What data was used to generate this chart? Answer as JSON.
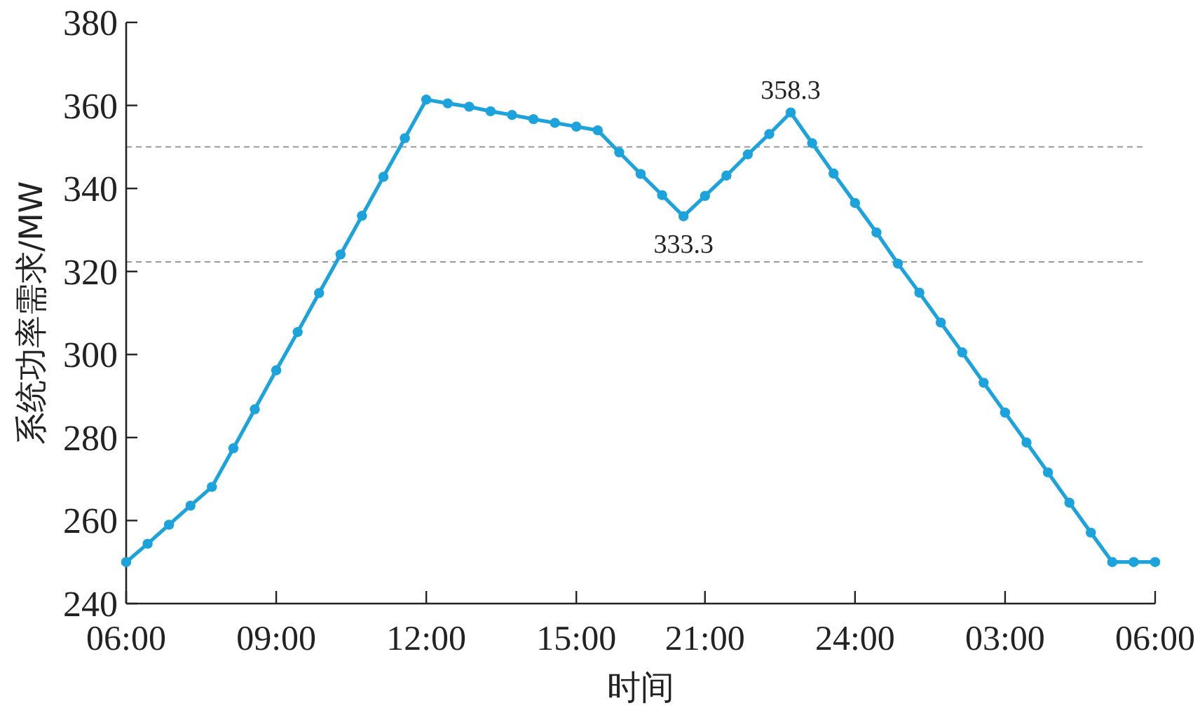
{
  "chart_data": {
    "type": "line",
    "xlabel": "时间",
    "ylabel": "系统功率需求/MW",
    "categories": [
      "06:00",
      null,
      null,
      null,
      null,
      null,
      null,
      "09:00",
      null,
      null,
      null,
      null,
      null,
      null,
      "12:00",
      null,
      null,
      null,
      null,
      null,
      null,
      "15:00",
      null,
      null,
      null,
      null,
      null,
      "21:00",
      null,
      null,
      null,
      null,
      null,
      null,
      "24:00",
      null,
      null,
      null,
      null,
      null,
      null,
      "03:00",
      null,
      null,
      null,
      null,
      null,
      null,
      "06:00"
    ],
    "series": [
      {
        "color": "#1ca3dc",
        "values": [
          250,
          254.4,
          259,
          263.6,
          268.1,
          277.4,
          286.8,
          296.2,
          305.4,
          314.8,
          324.1,
          333.4,
          342.8,
          352.1,
          361.4,
          360.5,
          359.7,
          358.6,
          357.7,
          356.7,
          355.8,
          354.9,
          354,
          348.7,
          343.5,
          338.4,
          333.3,
          338.2,
          343.1,
          348.2,
          353.1,
          358.3,
          350.9,
          343.6,
          336.5,
          329.4,
          321.9,
          314.9,
          307.7,
          300.5,
          293.2,
          286,
          278.8,
          271.6,
          264.3,
          257.1,
          250,
          250,
          250
        ]
      }
    ],
    "ylim": [
      240,
      380
    ],
    "yticks": [
      240,
      260,
      280,
      300,
      320,
      340,
      360,
      380
    ],
    "ref_lines": [
      {
        "axis": "y",
        "value": 350,
        "color": "#999999",
        "line_style": "dashed"
      },
      {
        "axis": "y",
        "value": 322.3,
        "color": "#999999",
        "line_style": "dashed"
      }
    ],
    "annotations": [
      "358.3",
      "333.3"
    ],
    "marker": "circle",
    "line_style": "solid"
  }
}
